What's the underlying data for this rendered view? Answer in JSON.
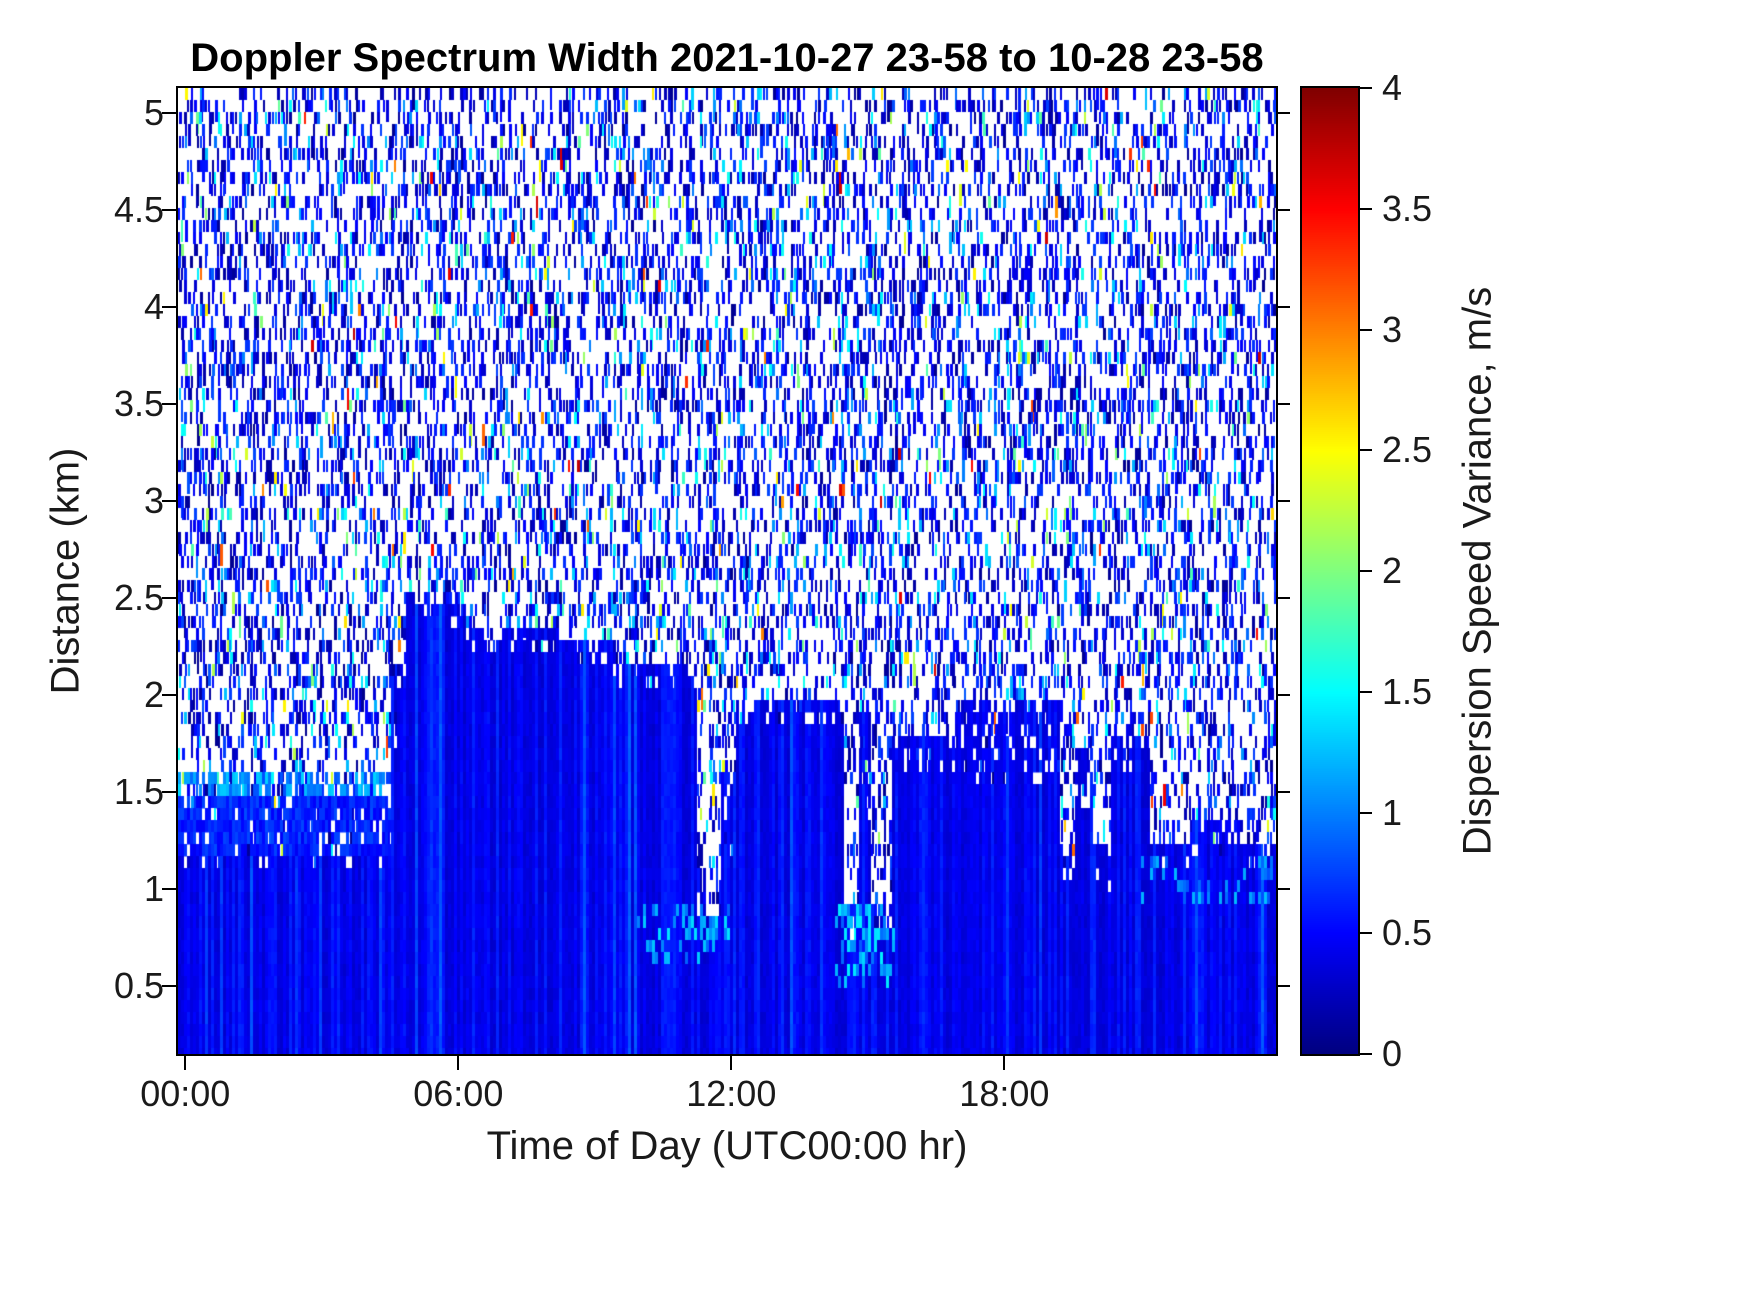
{
  "chart_data": {
    "type": "heatmap",
    "title": "Doppler Spectrum Width 2021-10-27 23-58 to 10-28 23-58",
    "xlabel": "Time of Day (UTC00:00 hr)",
    "ylabel": "Distance (km)",
    "colormap": "jet",
    "background_color": "#ffffff",
    "x_axis": {
      "range_hours": [
        -0.16,
        23.97
      ],
      "tick_hours": [
        0,
        6,
        12,
        18
      ],
      "tick_labels": [
        "00:00",
        "06:00",
        "12:00",
        "18:00"
      ]
    },
    "y_axis": {
      "range_km": [
        0.148,
        5.13
      ],
      "tick_values": [
        0.5,
        1,
        1.5,
        2,
        2.5,
        3,
        3.5,
        4,
        4.5,
        5
      ],
      "tick_labels": [
        "0.5",
        "1",
        "1.5",
        "2",
        "2.5",
        "3",
        "3.5",
        "4",
        "4.5",
        "5"
      ]
    },
    "colorbar": {
      "label": "Dispersion Speed Variance, m/s",
      "min": 0,
      "max": 4,
      "tick_values": [
        0,
        0.5,
        1,
        1.5,
        2,
        2.5,
        3,
        3.5,
        4
      ],
      "tick_labels": [
        "0",
        "0.5",
        "1",
        "1.5",
        "2",
        "2.5",
        "3",
        "3.5",
        "4"
      ]
    },
    "solid_region": {
      "description": "Contiguous low-variance echo (about 0.2 to 0.8 m/s, solid blue) from the bottom of the plot up to a time-varying top height in km",
      "echo_value_range_ms": [
        0.2,
        0.8
      ],
      "top_km_segments": [
        {
          "t0": -0.5,
          "t1": 4.55,
          "top": 1.17,
          "fuzz": 0.06
        },
        {
          "t0": 4.55,
          "t1": 4.85,
          "top": 2.1,
          "fuzz": 0.35
        },
        {
          "t0": 4.85,
          "t1": 5.35,
          "top": 2.55,
          "fuzz": 0.15
        },
        {
          "t0": 5.35,
          "t1": 6.2,
          "top": 2.47,
          "fuzz": 0.12
        },
        {
          "t0": 6.2,
          "t1": 8.2,
          "top": 2.37,
          "fuzz": 0.12
        },
        {
          "t0": 8.2,
          "t1": 9.4,
          "top": 2.27,
          "fuzz": 0.12
        },
        {
          "t0": 9.4,
          "t1": 11.25,
          "top": 2.17,
          "fuzz": 0.12
        },
        {
          "t0": 11.25,
          "t1": 11.45,
          "top": 1.1,
          "fuzz": 0.25
        },
        {
          "t0": 11.45,
          "t1": 11.75,
          "top": 0.85,
          "fuzz": 0.12
        },
        {
          "t0": 11.75,
          "t1": 12.1,
          "top": 1.6,
          "fuzz": 0.45
        },
        {
          "t0": 12.1,
          "t1": 14.45,
          "top": 1.97,
          "fuzz": 0.15
        },
        {
          "t0": 14.45,
          "t1": 14.8,
          "top": 0.9,
          "fuzz": 0.15
        },
        {
          "t0": 14.8,
          "t1": 15.1,
          "top": 1.9,
          "fuzz": 0.55
        },
        {
          "t0": 15.1,
          "t1": 15.5,
          "top": 0.9,
          "fuzz": 0.15
        },
        {
          "t0": 15.5,
          "t1": 16.9,
          "top": 1.78,
          "fuzz": 0.15
        },
        {
          "t0": 16.9,
          "t1": 19.25,
          "top": 1.97,
          "fuzz": 0.4
        },
        {
          "t0": 19.25,
          "t1": 19.55,
          "top": 1.25,
          "fuzz": 0.25
        },
        {
          "t0": 19.55,
          "t1": 19.95,
          "top": 1.75,
          "fuzz": 0.35
        },
        {
          "t0": 19.95,
          "t1": 20.35,
          "top": 1.25,
          "fuzz": 0.25
        },
        {
          "t0": 20.35,
          "t1": 21.2,
          "top": 1.78,
          "fuzz": 0.18
        },
        {
          "t0": 21.2,
          "t1": 22.1,
          "top": 1.22,
          "fuzz": 0.12
        },
        {
          "t0": 22.1,
          "t1": 23.2,
          "top": 1.35,
          "fuzz": 0.18
        },
        {
          "t0": 23.2,
          "t1": 24.5,
          "top": 1.22,
          "fuzz": 0.12
        }
      ],
      "cyan_patches": [
        {
          "t0": 9.9,
          "t1": 12.0,
          "d0": 0.6,
          "d1": 0.95,
          "p": 0.3,
          "v0": 0.85,
          "v1": 1.4
        },
        {
          "t0": 14.3,
          "t1": 15.6,
          "d0": 0.5,
          "d1": 0.95,
          "p": 0.45,
          "v0": 0.85,
          "v1": 1.45
        },
        {
          "t0": 11.3,
          "t1": 11.8,
          "d0": 0.65,
          "d1": 0.9,
          "p": 0.5,
          "v0": 0.9,
          "v1": 1.4
        },
        {
          "t0": 21.0,
          "t1": 24.5,
          "d0": 0.9,
          "d1": 1.18,
          "p": 0.22,
          "v0": 0.8,
          "v1": 1.25
        }
      ],
      "mixed_bands": [
        {
          "t0": -0.5,
          "t1": 4.55,
          "d0": 1.17,
          "d1": 1.45,
          "p": 0.85,
          "v0": 0.45,
          "v1": 0.8
        },
        {
          "t0": -0.5,
          "t1": 4.55,
          "d0": 1.45,
          "d1": 1.63,
          "p": 0.55,
          "v0": 0.8,
          "v1": 1.35
        }
      ]
    },
    "noise_region": {
      "description": "Sparse speckle noise above the echo top: thin vertical dashes, mostly dark blue 0-0.8 m/s, occasional cyan/green 0.8-2.6 m/s, rare yellow/orange/red above 2.6 m/s, on white background",
      "seed": 1337,
      "fill_probability": 0.45,
      "value_bins": [
        {
          "weight": 0.8,
          "v0": 0.05,
          "v1": 0.75
        },
        {
          "weight": 0.15,
          "v0": 0.75,
          "v1": 1.6
        },
        {
          "weight": 0.04,
          "v0": 1.6,
          "v1": 2.6
        },
        {
          "weight": 0.01,
          "v0": 2.6,
          "v1": 3.8
        }
      ]
    }
  }
}
